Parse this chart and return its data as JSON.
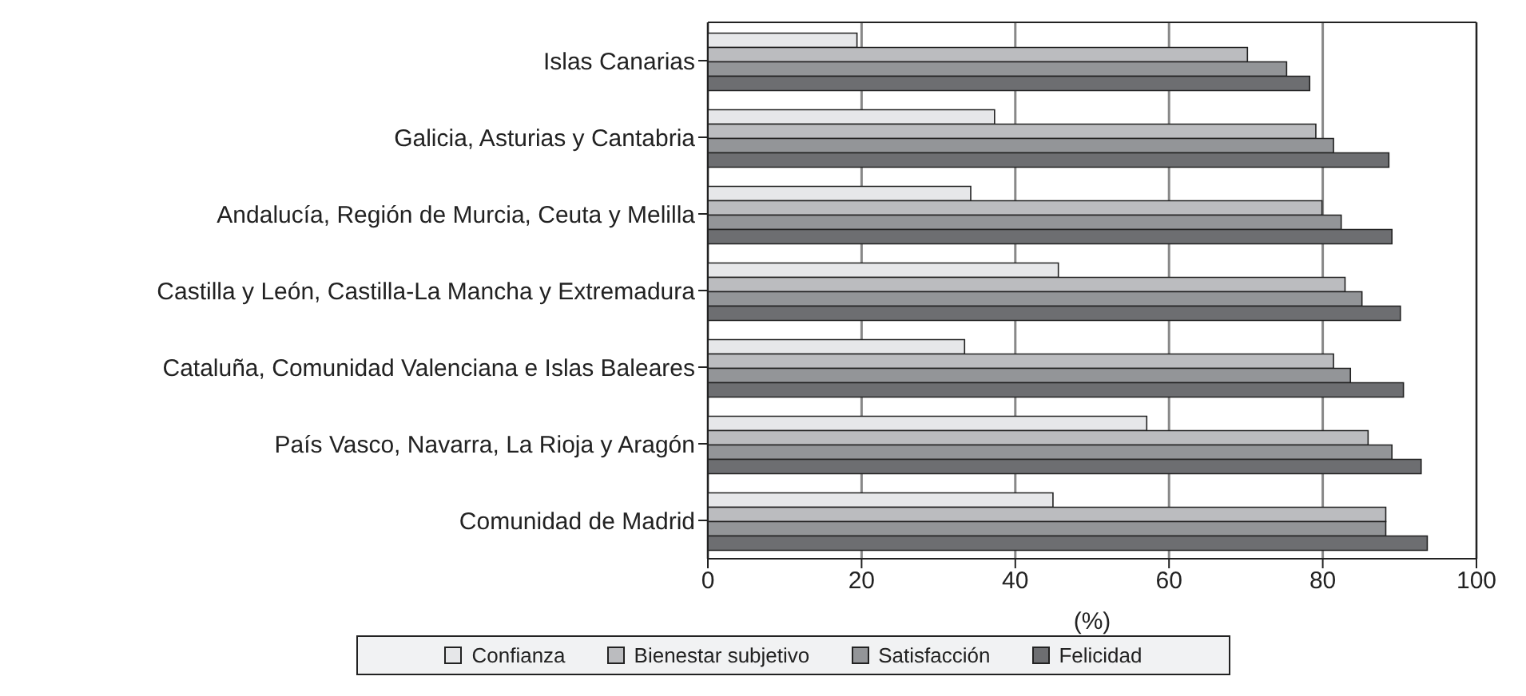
{
  "chart_data": {
    "type": "bar",
    "orientation": "horizontal",
    "xlabel": "(%)",
    "categories": [
      "Islas Canarias",
      "Galicia, Asturias y Cantabria",
      "Andalucía, Región de Murcia, Ceuta y Melilla",
      "Castilla y León, Castilla-La Mancha y Extremadura",
      "Cataluña, Comunidad Valenciana e Islas Baleares",
      "País Vasco, Navarra, La Rioja y Aragón",
      "Comunidad de Madrid"
    ],
    "series": [
      {
        "name": "Confianza",
        "color": "#e6e7e9",
        "values": [
          19.4,
          37.3,
          34.2,
          45.6,
          33.4,
          57.1,
          44.9
        ]
      },
      {
        "name": "Bienestar subjetivo",
        "color": "#bbbcbf",
        "values": [
          70.2,
          79.1,
          79.9,
          82.9,
          81.4,
          85.9,
          88.2
        ]
      },
      {
        "name": "Satisfacción",
        "color": "#939598",
        "values": [
          75.3,
          81.4,
          82.4,
          85.1,
          83.6,
          89.0,
          88.2
        ]
      },
      {
        "name": "Felicidad",
        "color": "#6d6e71",
        "values": [
          78.3,
          88.6,
          89.0,
          90.1,
          90.5,
          92.8,
          93.6
        ]
      }
    ],
    "xlim": [
      0,
      100
    ],
    "xticks": [
      0,
      20,
      40,
      60,
      80,
      100
    ],
    "grid": "x",
    "legend": "bottom"
  }
}
